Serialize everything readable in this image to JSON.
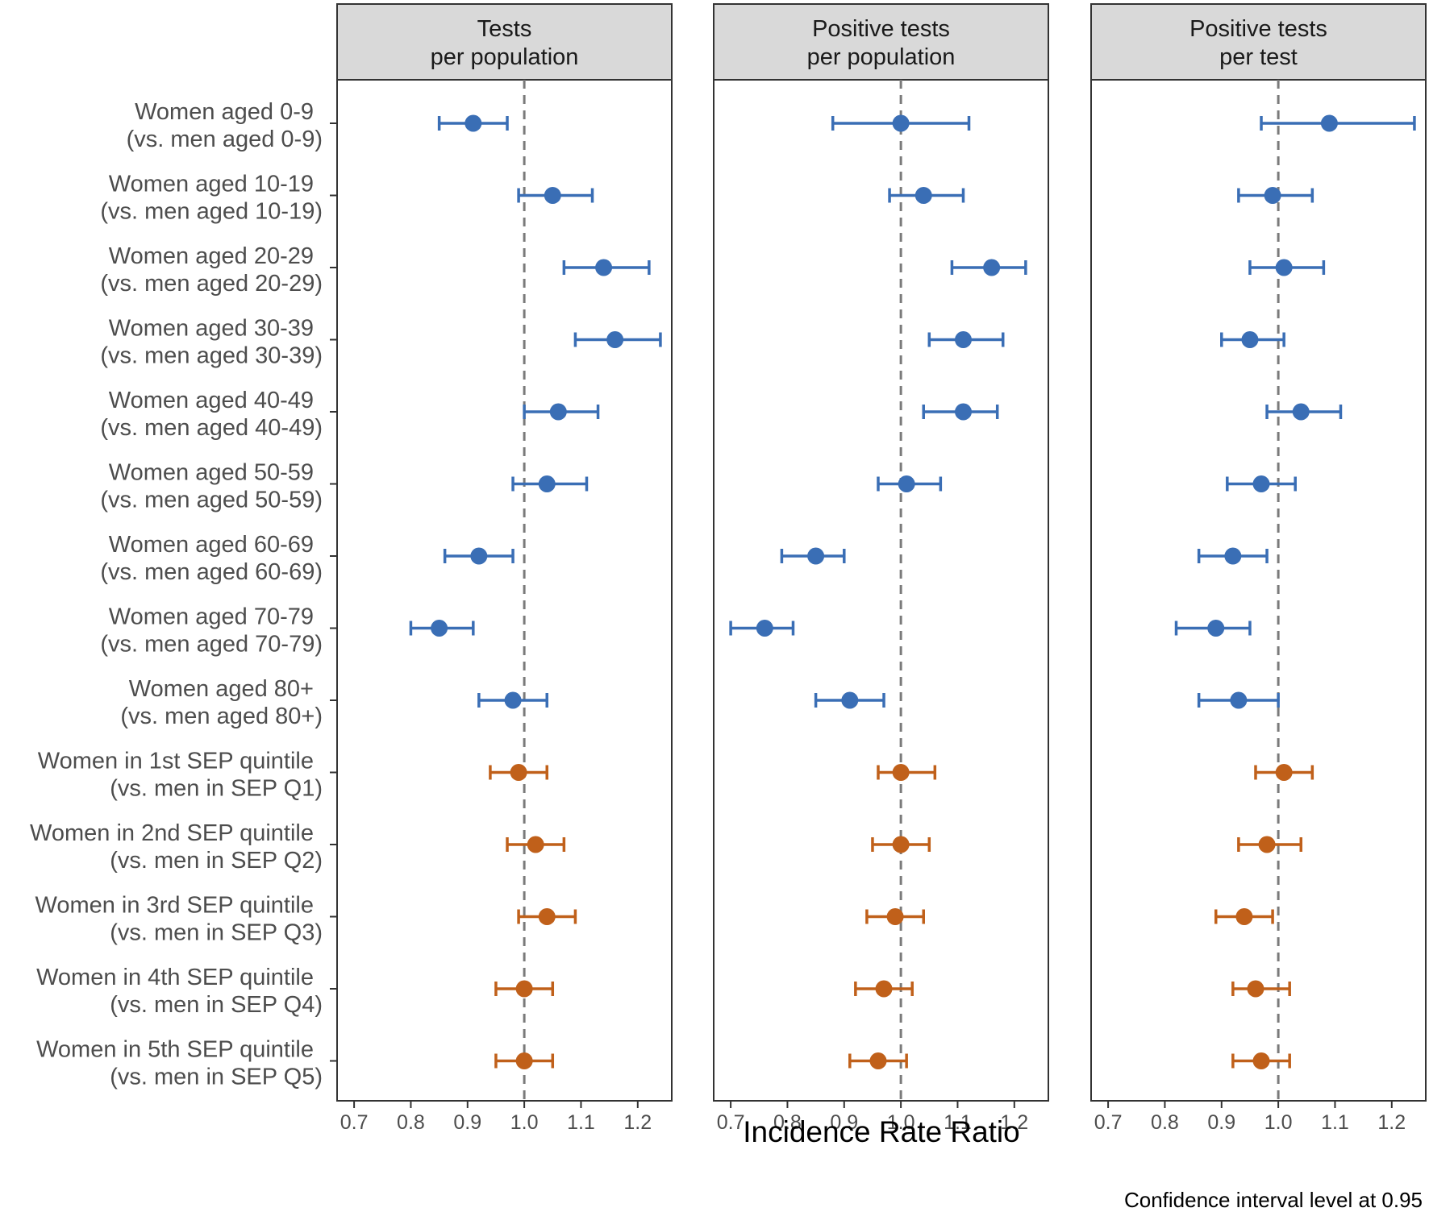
{
  "chart_data": {
    "type": "scatter",
    "subtype": "forest-plot-with-error-bars",
    "xlabel": "Incidence Rate Ratio",
    "caption": "Confidence interval level at 0.95",
    "xlim": [
      0.67,
      1.26
    ],
    "x_ticks": [
      "0.7",
      "0.8",
      "0.9",
      "1.0",
      "1.1",
      "1.2"
    ],
    "reference_line": 1.0,
    "colors": {
      "age": "#3a6eb5",
      "sep": "#c0601a",
      "reference": "#7a7a7a",
      "strip": "#d9d9d9"
    },
    "categories": [
      {
        "line1": "Women aged 0-9",
        "line2": "(vs. men aged 0-9)",
        "group": "age"
      },
      {
        "line1": "Women aged 10-19",
        "line2": "(vs. men aged 10-19)",
        "group": "age"
      },
      {
        "line1": "Women aged 20-29",
        "line2": "(vs. men aged 20-29)",
        "group": "age"
      },
      {
        "line1": "Women aged 30-39",
        "line2": "(vs. men aged 30-39)",
        "group": "age"
      },
      {
        "line1": "Women aged 40-49",
        "line2": "(vs. men aged 40-49)",
        "group": "age"
      },
      {
        "line1": "Women aged 50-59",
        "line2": "(vs. men aged 50-59)",
        "group": "age"
      },
      {
        "line1": "Women aged 60-69",
        "line2": "(vs. men aged 60-69)",
        "group": "age"
      },
      {
        "line1": "Women aged 70-79",
        "line2": "(vs. men aged 70-79)",
        "group": "age"
      },
      {
        "line1": "Women aged 80+",
        "line2": "(vs. men aged 80+)",
        "group": "age"
      },
      {
        "line1": "Women in 1st SEP quintile",
        "line2": "(vs. men in SEP Q1)",
        "group": "sep"
      },
      {
        "line1": "Women in 2nd SEP quintile",
        "line2": "(vs. men in SEP Q2)",
        "group": "sep"
      },
      {
        "line1": "Women in 3rd SEP quintile",
        "line2": "(vs. men in SEP Q3)",
        "group": "sep"
      },
      {
        "line1": "Women in 4th SEP quintile",
        "line2": "(vs. men in SEP Q4)",
        "group": "sep"
      },
      {
        "line1": "Women in 5th SEP quintile",
        "line2": "(vs. men in SEP Q5)",
        "group": "sep"
      }
    ],
    "panels": [
      {
        "title_line1": "Tests",
        "title_line2": "per population",
        "estimates": [
          0.91,
          1.05,
          1.14,
          1.16,
          1.06,
          1.04,
          0.92,
          0.85,
          0.98,
          0.99,
          1.02,
          1.04,
          1.0,
          1.0
        ],
        "lower": [
          0.85,
          0.99,
          1.07,
          1.09,
          1.0,
          0.98,
          0.86,
          0.8,
          0.92,
          0.94,
          0.97,
          0.99,
          0.95,
          0.95
        ],
        "upper": [
          0.97,
          1.12,
          1.22,
          1.24,
          1.13,
          1.11,
          0.98,
          0.91,
          1.04,
          1.04,
          1.07,
          1.09,
          1.05,
          1.05
        ]
      },
      {
        "title_line1": "Positive tests",
        "title_line2": "per population",
        "estimates": [
          1.0,
          1.04,
          1.16,
          1.11,
          1.11,
          1.01,
          0.85,
          0.76,
          0.91,
          1.0,
          1.0,
          0.99,
          0.97,
          0.96
        ],
        "lower": [
          0.88,
          0.98,
          1.09,
          1.05,
          1.04,
          0.96,
          0.79,
          0.7,
          0.85,
          0.96,
          0.95,
          0.94,
          0.92,
          0.91
        ],
        "upper": [
          1.12,
          1.11,
          1.22,
          1.18,
          1.17,
          1.07,
          0.9,
          0.81,
          0.97,
          1.06,
          1.05,
          1.04,
          1.02,
          1.01
        ]
      },
      {
        "title_line1": "Positive tests",
        "title_line2": "per test",
        "estimates": [
          1.09,
          0.99,
          1.01,
          0.95,
          1.04,
          0.97,
          0.92,
          0.89,
          0.93,
          1.01,
          0.98,
          0.94,
          0.96,
          0.97
        ],
        "lower": [
          0.97,
          0.93,
          0.95,
          0.9,
          0.98,
          0.91,
          0.86,
          0.82,
          0.86,
          0.96,
          0.93,
          0.89,
          0.92,
          0.92
        ],
        "upper": [
          1.24,
          1.06,
          1.08,
          1.01,
          1.11,
          1.03,
          0.98,
          0.95,
          1.0,
          1.06,
          1.04,
          0.99,
          1.02,
          1.02
        ]
      }
    ]
  }
}
